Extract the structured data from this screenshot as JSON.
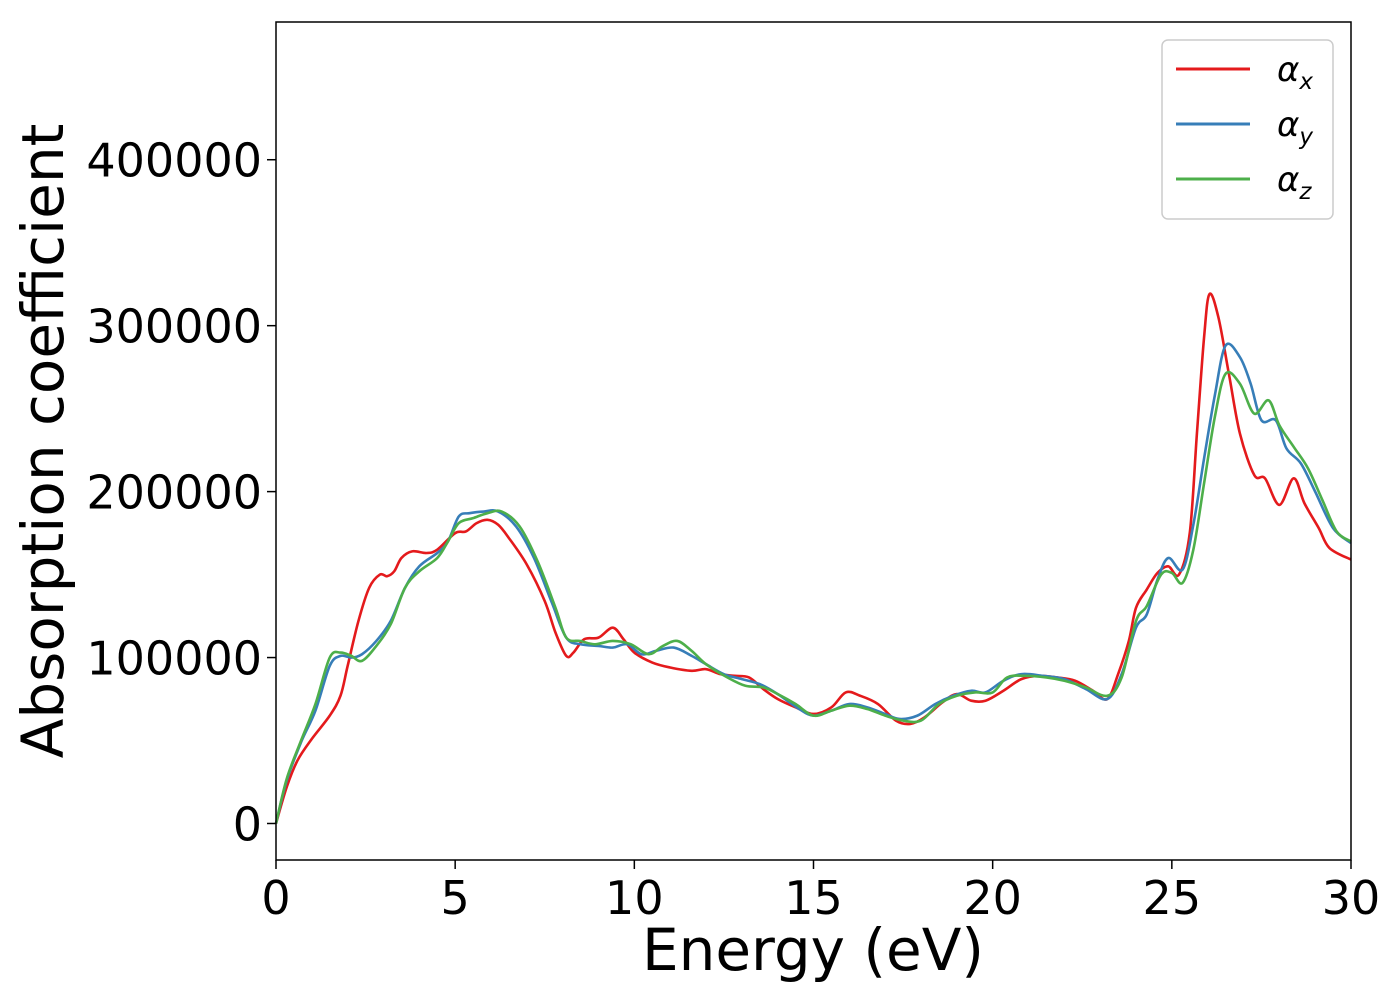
{
  "chart_data": {
    "type": "line",
    "title": "",
    "xlabel": "Energy (eV)",
    "ylabel": "Absorption coefficient",
    "xlim": [
      0,
      30
    ],
    "ylim": [
      -22000,
      483000
    ],
    "xticks": [
      0,
      5,
      10,
      15,
      20,
      25,
      30
    ],
    "xtick_labels": [
      "0",
      "5",
      "10",
      "15",
      "20",
      "25",
      "30"
    ],
    "yticks": [
      0,
      100000,
      200000,
      300000,
      400000
    ],
    "ytick_labels": [
      "0",
      "100000",
      "200000",
      "300000",
      "400000"
    ],
    "grid": false,
    "legend_position": "top-right",
    "series": [
      {
        "name": "α_x",
        "symbol": "α",
        "subscript": "x",
        "color": "#e41a1c",
        "points": [
          [
            0,
            0
          ],
          [
            0.3,
            22000
          ],
          [
            0.6,
            38000
          ],
          [
            1,
            51000
          ],
          [
            1.5,
            65000
          ],
          [
            1.8,
            77000
          ],
          [
            2,
            95000
          ],
          [
            2.3,
            122000
          ],
          [
            2.6,
            142000
          ],
          [
            2.9,
            150000
          ],
          [
            3.1,
            149000
          ],
          [
            3.3,
            152000
          ],
          [
            3.5,
            160000
          ],
          [
            3.8,
            164000
          ],
          [
            4.2,
            163000
          ],
          [
            4.5,
            165000
          ],
          [
            5,
            175000
          ],
          [
            5.3,
            176000
          ],
          [
            5.6,
            181000
          ],
          [
            5.9,
            183000
          ],
          [
            6.2,
            180000
          ],
          [
            6.5,
            172000
          ],
          [
            7,
            156000
          ],
          [
            7.5,
            134000
          ],
          [
            7.8,
            115000
          ],
          [
            8.1,
            101000
          ],
          [
            8.3,
            103000
          ],
          [
            8.6,
            111000
          ],
          [
            9,
            112000
          ],
          [
            9.4,
            118000
          ],
          [
            9.7,
            111000
          ],
          [
            10,
            103000
          ],
          [
            10.5,
            97000
          ],
          [
            11,
            94000
          ],
          [
            11.6,
            92000
          ],
          [
            12,
            93000
          ],
          [
            12.4,
            90000
          ],
          [
            12.8,
            89000
          ],
          [
            13.2,
            88000
          ],
          [
            13.6,
            81000
          ],
          [
            14,
            75000
          ],
          [
            14.5,
            70000
          ],
          [
            15,
            66000
          ],
          [
            15.5,
            70000
          ],
          [
            15.9,
            79000
          ],
          [
            16.3,
            77000
          ],
          [
            16.8,
            72000
          ],
          [
            17.3,
            62000
          ],
          [
            17.7,
            60000
          ],
          [
            18.1,
            64000
          ],
          [
            18.6,
            73000
          ],
          [
            19,
            78000
          ],
          [
            19.4,
            74000
          ],
          [
            19.8,
            74000
          ],
          [
            20.3,
            80000
          ],
          [
            20.8,
            87000
          ],
          [
            21.3,
            89000
          ],
          [
            21.8,
            88000
          ],
          [
            22.3,
            86000
          ],
          [
            22.8,
            80000
          ],
          [
            23.2,
            75000
          ],
          [
            23.5,
            90000
          ],
          [
            23.8,
            110000
          ],
          [
            24,
            130000
          ],
          [
            24.3,
            141000
          ],
          [
            24.6,
            151000
          ],
          [
            24.9,
            155000
          ],
          [
            25.2,
            150000
          ],
          [
            25.5,
            175000
          ],
          [
            25.7,
            235000
          ],
          [
            25.9,
            293000
          ],
          [
            26.05,
            319000
          ],
          [
            26.3,
            305000
          ],
          [
            26.6,
            270000
          ],
          [
            26.9,
            235000
          ],
          [
            27.3,
            210000
          ],
          [
            27.6,
            208000
          ],
          [
            28,
            192000
          ],
          [
            28.4,
            208000
          ],
          [
            28.7,
            193000
          ],
          [
            29.1,
            178000
          ],
          [
            29.4,
            166000
          ],
          [
            30,
            159000
          ]
        ]
      },
      {
        "name": "α_y",
        "symbol": "α",
        "subscript": "y",
        "color": "#377eb8",
        "points": [
          [
            0,
            0
          ],
          [
            0.3,
            26000
          ],
          [
            0.7,
            49000
          ],
          [
            1.1,
            68000
          ],
          [
            1.5,
            95000
          ],
          [
            1.8,
            101000
          ],
          [
            2.1,
            100000
          ],
          [
            2.4,
            102000
          ],
          [
            2.8,
            110000
          ],
          [
            3.2,
            122000
          ],
          [
            3.6,
            142000
          ],
          [
            4,
            155000
          ],
          [
            4.5,
            163000
          ],
          [
            4.8,
            170000
          ],
          [
            5.1,
            185000
          ],
          [
            5.4,
            187000
          ],
          [
            5.8,
            188000
          ],
          [
            6.2,
            188000
          ],
          [
            6.7,
            179000
          ],
          [
            7.2,
            160000
          ],
          [
            7.7,
            133000
          ],
          [
            8.1,
            112000
          ],
          [
            8.5,
            108000
          ],
          [
            9,
            107000
          ],
          [
            9.4,
            106000
          ],
          [
            9.8,
            108000
          ],
          [
            10.2,
            102000
          ],
          [
            10.6,
            104000
          ],
          [
            11.1,
            106000
          ],
          [
            11.6,
            101000
          ],
          [
            12,
            96000
          ],
          [
            12.5,
            90000
          ],
          [
            13,
            87000
          ],
          [
            13.5,
            84000
          ],
          [
            14,
            78000
          ],
          [
            14.6,
            69000
          ],
          [
            15,
            65000
          ],
          [
            15.5,
            68000
          ],
          [
            16,
            72000
          ],
          [
            16.5,
            70000
          ],
          [
            17,
            66000
          ],
          [
            17.4,
            63000
          ],
          [
            17.9,
            65000
          ],
          [
            18.4,
            72000
          ],
          [
            18.9,
            77000
          ],
          [
            19.4,
            80000
          ],
          [
            19.8,
            79000
          ],
          [
            20.3,
            86000
          ],
          [
            20.8,
            90000
          ],
          [
            21.4,
            89000
          ],
          [
            22,
            87000
          ],
          [
            22.6,
            81000
          ],
          [
            23.2,
            75000
          ],
          [
            23.6,
            90000
          ],
          [
            24,
            118000
          ],
          [
            24.3,
            126000
          ],
          [
            24.6,
            147000
          ],
          [
            24.9,
            160000
          ],
          [
            25.3,
            153000
          ],
          [
            25.6,
            180000
          ],
          [
            25.9,
            220000
          ],
          [
            26.2,
            258000
          ],
          [
            26.5,
            288000
          ],
          [
            26.9,
            281000
          ],
          [
            27.2,
            265000
          ],
          [
            27.5,
            243000
          ],
          [
            27.9,
            243000
          ],
          [
            28.2,
            226000
          ],
          [
            28.6,
            217000
          ],
          [
            29,
            200000
          ],
          [
            29.5,
            178000
          ],
          [
            30,
            169000
          ]
        ]
      },
      {
        "name": "α_z",
        "symbol": "α",
        "subscript": "z",
        "color": "#4daf4a",
        "points": [
          [
            0,
            0
          ],
          [
            0.3,
            27000
          ],
          [
            0.7,
            50000
          ],
          [
            1.1,
            72000
          ],
          [
            1.5,
            100000
          ],
          [
            1.8,
            103000
          ],
          [
            2.1,
            101000
          ],
          [
            2.4,
            98000
          ],
          [
            2.8,
            107000
          ],
          [
            3.2,
            120000
          ],
          [
            3.6,
            142000
          ],
          [
            4,
            152000
          ],
          [
            4.5,
            160000
          ],
          [
            4.8,
            170000
          ],
          [
            5.1,
            181000
          ],
          [
            5.5,
            184000
          ],
          [
            5.9,
            187000
          ],
          [
            6.3,
            188000
          ],
          [
            6.8,
            179000
          ],
          [
            7.3,
            158000
          ],
          [
            7.8,
            130000
          ],
          [
            8.1,
            112000
          ],
          [
            8.5,
            110000
          ],
          [
            8.9,
            108000
          ],
          [
            9.4,
            110000
          ],
          [
            9.9,
            108000
          ],
          [
            10.4,
            102000
          ],
          [
            10.8,
            107000
          ],
          [
            11.2,
            110000
          ],
          [
            11.6,
            104000
          ],
          [
            12,
            96000
          ],
          [
            12.6,
            88000
          ],
          [
            13.1,
            83000
          ],
          [
            13.6,
            82000
          ],
          [
            14,
            78000
          ],
          [
            14.5,
            72000
          ],
          [
            15,
            65000
          ],
          [
            15.5,
            68000
          ],
          [
            16,
            71000
          ],
          [
            16.5,
            69000
          ],
          [
            17,
            65000
          ],
          [
            17.5,
            62000
          ],
          [
            18,
            62000
          ],
          [
            18.5,
            72000
          ],
          [
            19,
            77000
          ],
          [
            19.5,
            79000
          ],
          [
            20,
            79000
          ],
          [
            20.4,
            88000
          ],
          [
            20.9,
            89000
          ],
          [
            21.5,
            88000
          ],
          [
            22,
            86000
          ],
          [
            22.6,
            82000
          ],
          [
            23.2,
            77000
          ],
          [
            23.6,
            88000
          ],
          [
            24,
            122000
          ],
          [
            24.3,
            131000
          ],
          [
            24.7,
            150000
          ],
          [
            25,
            151000
          ],
          [
            25.3,
            145000
          ],
          [
            25.6,
            165000
          ],
          [
            25.9,
            205000
          ],
          [
            26.2,
            245000
          ],
          [
            26.5,
            271000
          ],
          [
            26.9,
            265000
          ],
          [
            27.3,
            247000
          ],
          [
            27.7,
            255000
          ],
          [
            28,
            240000
          ],
          [
            28.4,
            227000
          ],
          [
            28.8,
            214000
          ],
          [
            29.2,
            195000
          ],
          [
            29.6,
            176000
          ],
          [
            30,
            170000
          ]
        ]
      }
    ]
  }
}
